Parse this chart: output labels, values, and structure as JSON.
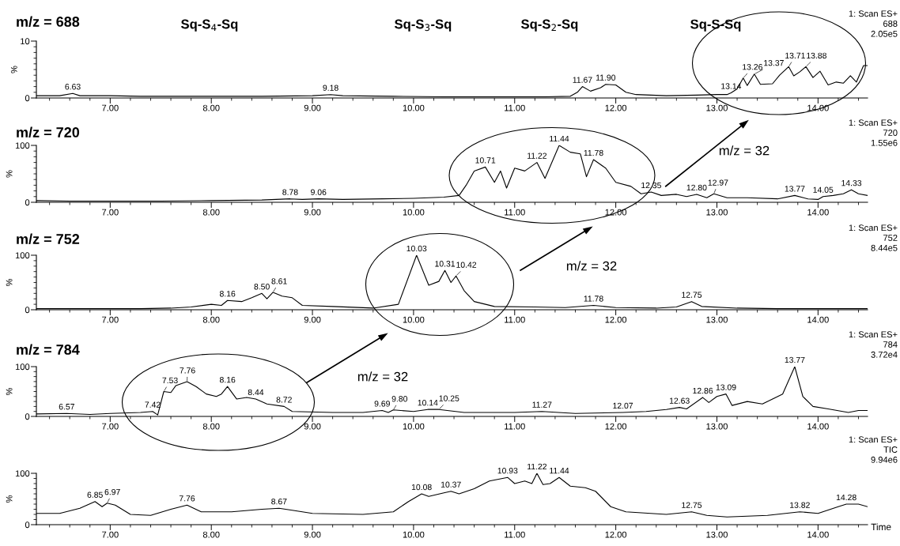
{
  "chart_data": [
    {
      "type": "line",
      "title": "m/z = 688",
      "ylabel": "%",
      "xlim": [
        6.27,
        14.49
      ],
      "ylim": [
        0,
        10
      ],
      "xticks": [
        {
          "value": 6.4,
          "label": null
        },
        {
          "value": 6.6,
          "label": null
        },
        {
          "value": 6.8,
          "label": null
        },
        {
          "value": 7,
          "label": "7.00"
        },
        {
          "value": 7.2,
          "label": null
        },
        {
          "value": 7.4,
          "label": null
        },
        {
          "value": 7.6,
          "label": null
        },
        {
          "value": 7.8,
          "label": null
        },
        {
          "value": 8,
          "label": "8.00"
        },
        {
          "value": 8.2,
          "label": null
        },
        {
          "value": 8.4,
          "label": null
        },
        {
          "value": 8.6,
          "label": null
        },
        {
          "value": 8.8,
          "label": null
        },
        {
          "value": 9,
          "label": "9.00"
        },
        {
          "value": 9.2,
          "label": null
        },
        {
          "value": 9.4,
          "label": null
        },
        {
          "value": 9.6,
          "label": null
        },
        {
          "value": 9.8,
          "label": null
        },
        {
          "value": 10,
          "label": "10.00"
        },
        {
          "value": 10.2,
          "label": null
        },
        {
          "value": 10.4,
          "label": null
        },
        {
          "value": 10.6,
          "label": null
        },
        {
          "value": 10.8,
          "label": null
        },
        {
          "value": 11,
          "label": "11.00"
        },
        {
          "value": 11.2,
          "label": null
        },
        {
          "value": 11.4,
          "label": null
        },
        {
          "value": 11.6,
          "label": null
        },
        {
          "value": 11.8,
          "label": null
        },
        {
          "value": 12,
          "label": "12.00"
        },
        {
          "value": 12.2,
          "label": null
        },
        {
          "value": 12.4,
          "label": null
        },
        {
          "value": 12.6,
          "label": null
        },
        {
          "value": 12.8,
          "label": null
        },
        {
          "value": 13,
          "label": "13.00"
        },
        {
          "value": 13.2,
          "label": null
        },
        {
          "value": 13.4,
          "label": null
        },
        {
          "value": 13.6,
          "label": null
        },
        {
          "value": 13.8,
          "label": null
        },
        {
          "value": 14,
          "label": "14.00"
        },
        {
          "value": 14.2,
          "label": null
        },
        {
          "value": 14.4,
          "label": null
        }
      ],
      "yticks": [
        0,
        {
          "value": 1,
          "label": null
        },
        {
          "value": 2,
          "label": null
        },
        {
          "value": 3,
          "label": null
        },
        {
          "value": 4,
          "label": null
        },
        {
          "value": 5,
          "label": null
        },
        {
          "value": 6,
          "label": null
        },
        {
          "value": 7,
          "label": null
        },
        {
          "value": 8,
          "label": null
        },
        {
          "value": 9,
          "label": null
        },
        10
      ],
      "series": [
        {
          "color": "#000000",
          "x": [
            6.27,
            6.5,
            6.63,
            6.7,
            7.0,
            7.3,
            7.6,
            8.0,
            8.5,
            9.0,
            9.18,
            9.3,
            9.8,
            10.3,
            10.8,
            11.3,
            11.55,
            11.62,
            11.67,
            11.75,
            11.85,
            11.9,
            12.0,
            12.1,
            12.2,
            12.5,
            12.8,
            13.0,
            13.1,
            13.14,
            13.2,
            13.26,
            13.3,
            13.37,
            13.43,
            13.55,
            13.62,
            13.71,
            13.76,
            13.82,
            13.88,
            13.95,
            14.02,
            14.1,
            14.18,
            14.25,
            14.32,
            14.38,
            14.45,
            14.49
          ],
          "values": [
            0.4,
            0.4,
            0.8,
            0.4,
            0.4,
            0.3,
            0.3,
            0.3,
            0.3,
            0.4,
            0.6,
            0.4,
            0.3,
            0.2,
            0.2,
            0.2,
            0.3,
            1.0,
            2.0,
            1.2,
            1.8,
            2.4,
            2.3,
            1.0,
            0.6,
            0.4,
            0.5,
            0.6,
            0.6,
            0.9,
            1.6,
            3.5,
            2.2,
            4.2,
            2.4,
            2.5,
            4.0,
            5.5,
            3.9,
            4.6,
            5.5,
            3.6,
            4.7,
            2.3,
            2.8,
            2.6,
            3.9,
            2.8,
            5.7,
            5.7
          ]
        }
      ],
      "annotations": [
        "1: Scan ES+\n688\n2.05e5",
        "Sq-S$_{4}$-Sq",
        "Sq-S$_{3}$-Sq",
        "Sq-S$_{2}$-Sq",
        "Sq-S-Sq",
        {
          "text": "6.63",
          "x": 6.63,
          "y": 0.8
        },
        {
          "text": "9.18",
          "x": 9.18,
          "y": 0.6
        },
        {
          "text": "11.67",
          "x": 11.67,
          "y": 2.0
        },
        {
          "text": "11.90",
          "x": 11.9,
          "y": 2.4
        },
        {
          "text": "13.14",
          "x": 13.14,
          "y": 0.9
        },
        {
          "text": "13.26",
          "x": 13.26,
          "y": 3.5
        },
        {
          "text": "13.37",
          "x": 13.37,
          "y": 4.2
        },
        {
          "text": "13.71",
          "x": 13.71,
          "y": 5.5
        },
        {
          "text": "13.88",
          "x": 13.88,
          "y": 5.5
        }
      ]
    },
    {
      "type": "line",
      "title": "m/z = 720",
      "ylabel": "%",
      "xlim": [
        6.27,
        14.49
      ],
      "ylim": [
        0,
        100
      ],
      "xticks": [
        {
          "value": 6.4,
          "label": null
        },
        {
          "value": 6.6,
          "label": null
        },
        {
          "value": 6.8,
          "label": null
        },
        {
          "value": 7,
          "label": "7.00"
        },
        {
          "value": 7.2,
          "label": null
        },
        {
          "value": 7.4,
          "label": null
        },
        {
          "value": 7.6,
          "label": null
        },
        {
          "value": 7.8,
          "label": null
        },
        {
          "value": 8,
          "label": "8.00"
        },
        {
          "value": 8.2,
          "label": null
        },
        {
          "value": 8.4,
          "label": null
        },
        {
          "value": 8.6,
          "label": null
        },
        {
          "value": 8.8,
          "label": null
        },
        {
          "value": 9,
          "label": "9.00"
        },
        {
          "value": 9.2,
          "label": null
        },
        {
          "value": 9.4,
          "label": null
        },
        {
          "value": 9.6,
          "label": null
        },
        {
          "value": 9.8,
          "label": null
        },
        {
          "value": 10,
          "label": "10.00"
        },
        {
          "value": 10.2,
          "label": null
        },
        {
          "value": 10.4,
          "label": null
        },
        {
          "value": 10.6,
          "label": null
        },
        {
          "value": 10.8,
          "label": null
        },
        {
          "value": 11,
          "label": "11.00"
        },
        {
          "value": 11.2,
          "label": null
        },
        {
          "value": 11.4,
          "label": null
        },
        {
          "value": 11.6,
          "label": null
        },
        {
          "value": 11.8,
          "label": null
        },
        {
          "value": 12,
          "label": "12.00"
        },
        {
          "value": 12.2,
          "label": null
        },
        {
          "value": 12.4,
          "label": null
        },
        {
          "value": 12.6,
          "label": null
        },
        {
          "value": 12.8,
          "label": null
        },
        {
          "value": 13,
          "label": "13.00"
        },
        {
          "value": 13.2,
          "label": null
        },
        {
          "value": 13.4,
          "label": null
        },
        {
          "value": 13.6,
          "label": null
        },
        {
          "value": 13.8,
          "label": null
        },
        {
          "value": 14,
          "label": "14.00"
        },
        {
          "value": 14.2,
          "label": null
        },
        {
          "value": 14.4,
          "label": null
        }
      ],
      "yticks": [
        0,
        {
          "value": 10,
          "label": null
        },
        {
          "value": 20,
          "label": null
        },
        {
          "value": 30,
          "label": null
        },
        {
          "value": 40,
          "label": null
        },
        {
          "value": 50,
          "label": null
        },
        {
          "value": 60,
          "label": null
        },
        {
          "value": 70,
          "label": null
        },
        {
          "value": 80,
          "label": null
        },
        {
          "value": 90,
          "label": null
        },
        100
      ],
      "series": [
        {
          "color": "#000000",
          "x": [
            6.27,
            6.6,
            7.0,
            7.5,
            8.0,
            8.5,
            8.78,
            8.9,
            9.06,
            9.3,
            9.7,
            10.0,
            10.3,
            10.45,
            10.52,
            10.6,
            10.71,
            10.8,
            10.86,
            10.92,
            11.0,
            11.1,
            11.22,
            11.3,
            11.44,
            11.55,
            11.65,
            11.71,
            11.78,
            11.9,
            12.0,
            12.15,
            12.25,
            12.35,
            12.45,
            12.6,
            12.7,
            12.8,
            12.9,
            12.97,
            13.1,
            13.3,
            13.6,
            13.77,
            13.9,
            14.0,
            14.05,
            14.15,
            14.25,
            14.33,
            14.4,
            14.49
          ],
          "values": [
            3,
            2,
            2,
            2,
            3,
            4,
            6,
            5,
            6,
            5,
            6,
            7,
            9,
            12,
            30,
            55,
            62,
            35,
            55,
            25,
            60,
            55,
            70,
            42,
            100,
            88,
            85,
            45,
            75,
            60,
            35,
            28,
            15,
            18,
            12,
            14,
            10,
            14,
            8,
            15,
            8,
            8,
            6,
            12,
            6,
            5,
            10,
            12,
            15,
            22,
            15,
            12
          ]
        }
      ],
      "annotations": [
        "1: Scan ES+\n720\n1.55e6",
        "m/z = 32",
        {
          "text": "8.78",
          "x": 8.78,
          "y": 6
        },
        {
          "text": "9.06",
          "x": 9.06,
          "y": 6
        },
        {
          "text": "10.71",
          "x": 10.71,
          "y": 62
        },
        {
          "text": "11.22",
          "x": 11.22,
          "y": 70
        },
        {
          "text": "11.44",
          "x": 11.44,
          "y": 100
        },
        {
          "text": "11.78",
          "x": 11.78,
          "y": 75
        },
        {
          "text": "12.35",
          "x": 12.35,
          "y": 18
        },
        {
          "text": "12.80",
          "x": 12.8,
          "y": 14
        },
        {
          "text": "12.97",
          "x": 12.97,
          "y": 15
        },
        {
          "text": "13.77",
          "x": 13.77,
          "y": 12
        },
        {
          "text": "14.05",
          "x": 14.05,
          "y": 10
        },
        {
          "text": "14.33",
          "x": 14.33,
          "y": 22
        }
      ]
    },
    {
      "type": "line",
      "title": "m/z = 752",
      "ylabel": "%",
      "xlim": [
        6.27,
        14.49
      ],
      "ylim": [
        0,
        100
      ],
      "xticks": [
        {
          "value": 6.4,
          "label": null
        },
        {
          "value": 6.6,
          "label": null
        },
        {
          "value": 6.8,
          "label": null
        },
        {
          "value": 7,
          "label": "7.00"
        },
        {
          "value": 7.2,
          "label": null
        },
        {
          "value": 7.4,
          "label": null
        },
        {
          "value": 7.6,
          "label": null
        },
        {
          "value": 7.8,
          "label": null
        },
        {
          "value": 8,
          "label": "8.00"
        },
        {
          "value": 8.2,
          "label": null
        },
        {
          "value": 8.4,
          "label": null
        },
        {
          "value": 8.6,
          "label": null
        },
        {
          "value": 8.8,
          "label": null
        },
        {
          "value": 9,
          "label": "9.00"
        },
        {
          "value": 9.2,
          "label": null
        },
        {
          "value": 9.4,
          "label": null
        },
        {
          "value": 9.6,
          "label": null
        },
        {
          "value": 9.8,
          "label": null
        },
        {
          "value": 10,
          "label": "10.00"
        },
        {
          "value": 10.2,
          "label": null
        },
        {
          "value": 10.4,
          "label": null
        },
        {
          "value": 10.6,
          "label": null
        },
        {
          "value": 10.8,
          "label": null
        },
        {
          "value": 11,
          "label": "11.00"
        },
        {
          "value": 11.2,
          "label": null
        },
        {
          "value": 11.4,
          "label": null
        },
        {
          "value": 11.6,
          "label": null
        },
        {
          "value": 11.8,
          "label": null
        },
        {
          "value": 12,
          "label": "12.00"
        },
        {
          "value": 12.2,
          "label": null
        },
        {
          "value": 12.4,
          "label": null
        },
        {
          "value": 12.6,
          "label": null
        },
        {
          "value": 12.8,
          "label": null
        },
        {
          "value": 13,
          "label": "13.00"
        },
        {
          "value": 13.2,
          "label": null
        },
        {
          "value": 13.4,
          "label": null
        },
        {
          "value": 13.6,
          "label": null
        },
        {
          "value": 13.8,
          "label": null
        },
        {
          "value": 14,
          "label": "14.00"
        },
        {
          "value": 14.2,
          "label": null
        },
        {
          "value": 14.4,
          "label": null
        }
      ],
      "yticks": [
        0,
        {
          "value": 10,
          "label": null
        },
        {
          "value": 20,
          "label": null
        },
        {
          "value": 30,
          "label": null
        },
        {
          "value": 40,
          "label": null
        },
        {
          "value": 50,
          "label": null
        },
        {
          "value": 60,
          "label": null
        },
        {
          "value": 70,
          "label": null
        },
        {
          "value": 80,
          "label": null
        },
        {
          "value": 90,
          "label": null
        },
        100
      ],
      "series": [
        {
          "color": "#000000",
          "x": [
            6.27,
            6.8,
            7.3,
            7.6,
            7.8,
            8.0,
            8.1,
            8.16,
            8.3,
            8.4,
            8.5,
            8.55,
            8.61,
            8.7,
            8.8,
            8.9,
            9.2,
            9.6,
            9.85,
            10.03,
            10.15,
            10.25,
            10.31,
            10.37,
            10.42,
            10.5,
            10.6,
            10.8,
            11.2,
            11.5,
            11.78,
            12.0,
            12.4,
            12.6,
            12.75,
            12.85,
            13.2,
            13.6,
            14.0,
            14.49
          ],
          "values": [
            2,
            2,
            2,
            3,
            5,
            10,
            8,
            17,
            15,
            22,
            30,
            20,
            32,
            25,
            22,
            8,
            6,
            3,
            10,
            100,
            45,
            52,
            72,
            50,
            62,
            35,
            15,
            6,
            5,
            4,
            8,
            4,
            3,
            5,
            15,
            6,
            3,
            2,
            2,
            2
          ]
        }
      ],
      "annotations": [
        "1: Scan ES+\n752\n8.44e5",
        "m/z = 32",
        {
          "text": "8.16",
          "x": 8.16,
          "y": 17
        },
        {
          "text": "8.50",
          "x": 8.5,
          "y": 30
        },
        {
          "text": "8.61",
          "x": 8.61,
          "y": 32
        },
        {
          "text": "10.03",
          "x": 10.03,
          "y": 100
        },
        {
          "text": "10.31",
          "x": 10.31,
          "y": 72
        },
        {
          "text": "10.42",
          "x": 10.42,
          "y": 62
        },
        {
          "text": "11.78",
          "x": 11.78,
          "y": 8
        },
        {
          "text": "12.75",
          "x": 12.75,
          "y": 15
        }
      ]
    },
    {
      "type": "line",
      "title": "m/z = 784",
      "ylabel": "%",
      "xlim": [
        6.27,
        14.49
      ],
      "ylim": [
        0,
        100
      ],
      "xticks": [
        {
          "value": 6.4,
          "label": null
        },
        {
          "value": 6.6,
          "label": null
        },
        {
          "value": 6.8,
          "label": null
        },
        {
          "value": 7,
          "label": "7.00"
        },
        {
          "value": 7.2,
          "label": null
        },
        {
          "value": 7.4,
          "label": null
        },
        {
          "value": 7.6,
          "label": null
        },
        {
          "value": 7.8,
          "label": null
        },
        {
          "value": 8,
          "label": "8.00"
        },
        {
          "value": 8.2,
          "label": null
        },
        {
          "value": 8.4,
          "label": null
        },
        {
          "value": 8.6,
          "label": null
        },
        {
          "value": 8.8,
          "label": null
        },
        {
          "value": 9,
          "label": "9.00"
        },
        {
          "value": 9.2,
          "label": null
        },
        {
          "value": 9.4,
          "label": null
        },
        {
          "value": 9.6,
          "label": null
        },
        {
          "value": 9.8,
          "label": null
        },
        {
          "value": 10,
          "label": "10.00"
        },
        {
          "value": 10.2,
          "label": null
        },
        {
          "value": 10.4,
          "label": null
        },
        {
          "value": 10.6,
          "label": null
        },
        {
          "value": 10.8,
          "label": null
        },
        {
          "value": 11,
          "label": "11.00"
        },
        {
          "value": 11.2,
          "label": null
        },
        {
          "value": 11.4,
          "label": null
        },
        {
          "value": 11.6,
          "label": null
        },
        {
          "value": 11.8,
          "label": null
        },
        {
          "value": 12,
          "label": "12.00"
        },
        {
          "value": 12.2,
          "label": null
        },
        {
          "value": 12.4,
          "label": null
        },
        {
          "value": 12.6,
          "label": null
        },
        {
          "value": 12.8,
          "label": null
        },
        {
          "value": 13,
          "label": "13.00"
        },
        {
          "value": 13.2,
          "label": null
        },
        {
          "value": 13.4,
          "label": null
        },
        {
          "value": 13.6,
          "label": null
        },
        {
          "value": 13.8,
          "label": null
        },
        {
          "value": 14,
          "label": "14.00"
        },
        {
          "value": 14.2,
          "label": null
        },
        {
          "value": 14.4,
          "label": null
        }
      ],
      "yticks": [
        0,
        {
          "value": 10,
          "label": null
        },
        {
          "value": 20,
          "label": null
        },
        {
          "value": 30,
          "label": null
        },
        {
          "value": 40,
          "label": null
        },
        {
          "value": 50,
          "label": null
        },
        {
          "value": 60,
          "label": null
        },
        {
          "value": 70,
          "label": null
        },
        {
          "value": 80,
          "label": null
        },
        {
          "value": 90,
          "label": null
        },
        100
      ],
      "series": [
        {
          "color": "#000000",
          "x": [
            6.27,
            6.57,
            6.8,
            7.0,
            7.3,
            7.42,
            7.47,
            7.53,
            7.6,
            7.65,
            7.76,
            7.85,
            7.95,
            8.05,
            8.1,
            8.16,
            8.25,
            8.35,
            8.44,
            8.55,
            8.72,
            8.8,
            9.2,
            9.5,
            9.69,
            9.75,
            9.8,
            10.0,
            10.14,
            10.25,
            10.5,
            11.0,
            11.27,
            11.6,
            12.07,
            12.3,
            12.5,
            12.63,
            12.7,
            12.86,
            12.92,
            13.0,
            13.09,
            13.15,
            13.3,
            13.45,
            13.55,
            13.65,
            13.77,
            13.85,
            13.95,
            14.1,
            14.3,
            14.4,
            14.49
          ],
          "values": [
            5,
            6,
            4,
            6,
            8,
            10,
            3,
            50,
            48,
            62,
            70,
            60,
            45,
            40,
            45,
            60,
            35,
            38,
            35,
            25,
            20,
            10,
            8,
            8,
            12,
            8,
            13,
            10,
            14,
            14,
            8,
            8,
            10,
            6,
            8,
            10,
            14,
            18,
            15,
            38,
            28,
            40,
            45,
            22,
            30,
            25,
            35,
            45,
            100,
            40,
            20,
            15,
            8,
            12,
            12
          ]
        }
      ],
      "annotations": [
        "1: Scan ES+\n784\n3.72e4",
        "m/z = 32",
        {
          "text": "6.57",
          "x": 6.57,
          "y": 6
        },
        {
          "text": "7.42",
          "x": 7.42,
          "y": 10
        },
        {
          "text": "7.53",
          "x": 7.53,
          "y": 50
        },
        {
          "text": "7.76",
          "x": 7.76,
          "y": 70
        },
        {
          "text": "8.16",
          "x": 8.16,
          "y": 60
        },
        {
          "text": "8.44",
          "x": 8.44,
          "y": 35
        },
        {
          "text": "8.72",
          "x": 8.72,
          "y": 20
        },
        {
          "text": "9.69",
          "x": 9.69,
          "y": 12
        },
        {
          "text": "9.80",
          "x": 9.8,
          "y": 13
        },
        {
          "text": "10.14",
          "x": 10.14,
          "y": 14
        },
        {
          "text": "10.25",
          "x": 10.25,
          "y": 14
        },
        {
          "text": "11.27",
          "x": 11.27,
          "y": 10
        },
        {
          "text": "12.07",
          "x": 12.07,
          "y": 8
        },
        {
          "text": "12.63",
          "x": 12.63,
          "y": 18
        },
        {
          "text": "12.86",
          "x": 12.86,
          "y": 38
        },
        {
          "text": "13.09",
          "x": 13.09,
          "y": 45
        },
        {
          "text": "13.77",
          "x": 13.77,
          "y": 100
        }
      ]
    },
    {
      "type": "line",
      "xlabel": "Time",
      "ylabel": "%",
      "xlim": [
        6.27,
        14.49
      ],
      "ylim": [
        0,
        100
      ],
      "xticks": [
        {
          "value": 6.4,
          "label": null
        },
        {
          "value": 6.6,
          "label": null
        },
        {
          "value": 6.8,
          "label": null
        },
        {
          "value": 7,
          "label": "7.00"
        },
        {
          "value": 7.2,
          "label": null
        },
        {
          "value": 7.4,
          "label": null
        },
        {
          "value": 7.6,
          "label": null
        },
        {
          "value": 7.8,
          "label": null
        },
        {
          "value": 8,
          "label": "8.00"
        },
        {
          "value": 8.2,
          "label": null
        },
        {
          "value": 8.4,
          "label": null
        },
        {
          "value": 8.6,
          "label": null
        },
        {
          "value": 8.8,
          "label": null
        },
        {
          "value": 9,
          "label": "9.00"
        },
        {
          "value": 9.2,
          "label": null
        },
        {
          "value": 9.4,
          "label": null
        },
        {
          "value": 9.6,
          "label": null
        },
        {
          "value": 9.8,
          "label": null
        },
        {
          "value": 10,
          "label": "10.00"
        },
        {
          "value": 10.2,
          "label": null
        },
        {
          "value": 10.4,
          "label": null
        },
        {
          "value": 10.6,
          "label": null
        },
        {
          "value": 10.8,
          "label": null
        },
        {
          "value": 11,
          "label": "11.00"
        },
        {
          "value": 11.2,
          "label": null
        },
        {
          "value": 11.4,
          "label": null
        },
        {
          "value": 11.6,
          "label": null
        },
        {
          "value": 11.8,
          "label": null
        },
        {
          "value": 12,
          "label": "12.00"
        },
        {
          "value": 12.2,
          "label": null
        },
        {
          "value": 12.4,
          "label": null
        },
        {
          "value": 12.6,
          "label": null
        },
        {
          "value": 12.8,
          "label": null
        },
        {
          "value": 13,
          "label": "13.00"
        },
        {
          "value": 13.2,
          "label": null
        },
        {
          "value": 13.4,
          "label": null
        },
        {
          "value": 13.6,
          "label": null
        },
        {
          "value": 13.8,
          "label": null
        },
        {
          "value": 14,
          "label": "14.00"
        },
        {
          "value": 14.2,
          "label": null
        },
        {
          "value": 14.4,
          "label": null
        }
      ],
      "yticks": [
        0,
        {
          "value": 10,
          "label": null
        },
        {
          "value": 20,
          "label": null
        },
        {
          "value": 30,
          "label": null
        },
        {
          "value": 40,
          "label": null
        },
        {
          "value": 50,
          "label": null
        },
        {
          "value": 60,
          "label": null
        },
        {
          "value": 70,
          "label": null
        },
        {
          "value": 80,
          "label": null
        },
        {
          "value": 90,
          "label": null
        },
        100
      ],
      "series": [
        {
          "color": "#000000",
          "x": [
            6.27,
            6.5,
            6.7,
            6.85,
            6.92,
            6.97,
            7.05,
            7.2,
            7.4,
            7.6,
            7.76,
            7.9,
            8.2,
            8.5,
            8.67,
            8.8,
            9.0,
            9.5,
            9.8,
            9.95,
            10.08,
            10.15,
            10.3,
            10.37,
            10.45,
            10.6,
            10.75,
            10.93,
            11.0,
            11.1,
            11.17,
            11.22,
            11.28,
            11.35,
            11.44,
            11.55,
            11.7,
            11.8,
            11.95,
            12.1,
            12.5,
            12.75,
            12.9,
            13.1,
            13.5,
            13.82,
            14.0,
            14.2,
            14.28,
            14.4,
            14.49
          ],
          "values": [
            22,
            22,
            32,
            45,
            35,
            42,
            38,
            20,
            18,
            30,
            38,
            25,
            25,
            30,
            32,
            28,
            22,
            20,
            25,
            45,
            60,
            55,
            62,
            65,
            60,
            70,
            85,
            92,
            80,
            85,
            80,
            100,
            78,
            80,
            92,
            75,
            72,
            65,
            35,
            25,
            20,
            25,
            18,
            15,
            18,
            25,
            22,
            35,
            40,
            40,
            35
          ]
        }
      ],
      "annotations": [
        "1: Scan ES+\nTIC\n9.94e6",
        {
          "text": "6.85",
          "x": 6.85,
          "y": 45
        },
        {
          "text": "6.97",
          "x": 6.97,
          "y": 42
        },
        {
          "text": "7.76",
          "x": 7.76,
          "y": 38
        },
        {
          "text": "8.67",
          "x": 8.67,
          "y": 32
        },
        {
          "text": "10.08",
          "x": 10.08,
          "y": 60
        },
        {
          "text": "10.37",
          "x": 10.37,
          "y": 65
        },
        {
          "text": "10.93",
          "x": 10.93,
          "y": 92
        },
        {
          "text": "11.22",
          "x": 11.22,
          "y": 100
        },
        {
          "text": "11.44",
          "x": 11.44,
          "y": 92
        },
        {
          "text": "12.75",
          "x": 12.75,
          "y": 25
        },
        {
          "text": "13.82",
          "x": 13.82,
          "y": 25
        },
        {
          "text": "14.28",
          "x": 14.28,
          "y": 40
        }
      ]
    }
  ]
}
